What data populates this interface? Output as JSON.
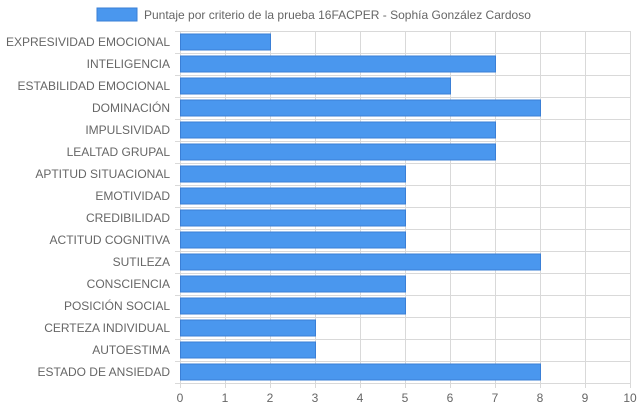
{
  "chart_data": {
    "type": "bar",
    "orientation": "horizontal",
    "title": "",
    "legend": {
      "placement": "top-center",
      "entries": [
        "Puntaje por criterio de la prueba 16FACPER - Sophía González Cardoso"
      ]
    },
    "categories": [
      "EXPRESIVIDAD EMOCIONAL",
      "INTELIGENCIA",
      "ESTABILIDAD EMOCIONAL",
      "DOMINACIÓN",
      "IMPULSIVIDAD",
      "LEALTAD GRUPAL",
      "APTITUD SITUACIONAL",
      "EMOTIVIDAD",
      "CREDIBILIDAD",
      "ACTITUD COGNITIVA",
      "SUTILEZA",
      "CONSCIENCIA",
      "POSICIÓN SOCIAL",
      "CERTEZA INDIVIDUAL",
      "AUTOESTIMA",
      "ESTADO DE ANSIEDAD"
    ],
    "series": [
      {
        "name": "Puntaje por criterio de la prueba 16FACPER - Sophía González Cardoso",
        "values": [
          2,
          7,
          6,
          8,
          7,
          7,
          5,
          5,
          5,
          5,
          8,
          5,
          5,
          3,
          3,
          8
        ]
      }
    ],
    "xlim": [
      0,
      10
    ],
    "xticks": [
      "0",
      "1",
      "2",
      "3",
      "4",
      "5",
      "6",
      "7",
      "8",
      "9",
      "10"
    ],
    "grid": true,
    "colors": {
      "bar_fill": "#4a97ee",
      "bar_stroke": "#3a7fd6",
      "grid": "#d9d9d9",
      "text": "#666666"
    }
  }
}
